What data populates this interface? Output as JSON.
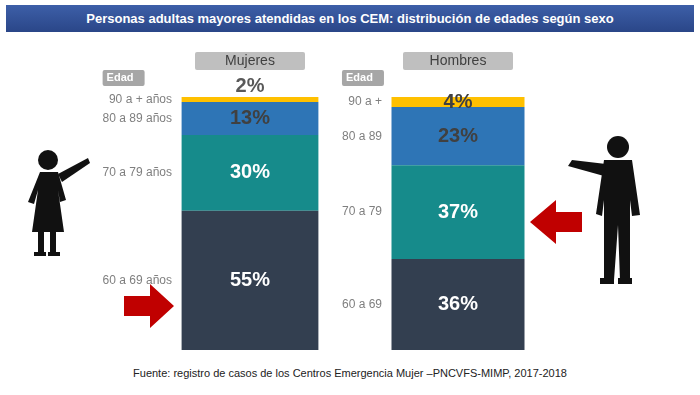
{
  "title": "Personas adultas mayores atendidas en los CEM: distribución de edades según sexo",
  "source": "Fuente: registro de casos de los Centros Emergencia Mujer –PNCVFS-MIMP, 2017-2018",
  "chart_data": [
    {
      "type": "bar",
      "stacked": true,
      "grid": false,
      "tick_labels": false,
      "data_labels": true,
      "ylabel": "Edad",
      "categories": [
        "Mujeres"
      ],
      "ylim": [
        0,
        100
      ],
      "series": [
        {
          "name": "60 a 69 años",
          "color": "#333f50",
          "values": [
            55
          ],
          "value_labels": [
            "55%"
          ]
        },
        {
          "name": "70 a 79 años",
          "color": "#168b8b",
          "values": [
            30
          ],
          "value_labels": [
            "30%"
          ]
        },
        {
          "name": "80 a 89 años",
          "color": "#2e75b6",
          "values": [
            13
          ],
          "value_labels": [
            "13%"
          ]
        },
        {
          "name": "90 a + años",
          "color": "#ffc000",
          "values": [
            2
          ],
          "value_labels": [
            "2%"
          ]
        }
      ]
    },
    {
      "type": "bar",
      "stacked": true,
      "grid": false,
      "tick_labels": false,
      "data_labels": true,
      "ylabel": "Edad",
      "categories": [
        "Hombres"
      ],
      "ylim": [
        0,
        100
      ],
      "series": [
        {
          "name": "60 a 69",
          "color": "#333f50",
          "values": [
            36
          ],
          "value_labels": [
            "36%"
          ]
        },
        {
          "name": "70 a 79",
          "color": "#168b8b",
          "values": [
            37
          ],
          "value_labels": [
            "37%"
          ]
        },
        {
          "name": "80 a 89",
          "color": "#2e75b6",
          "values": [
            23
          ],
          "value_labels": [
            "23%"
          ]
        },
        {
          "name": "90 a +",
          "color": "#ffc000",
          "values": [
            4
          ],
          "value_labels": [
            "4%"
          ]
        }
      ]
    }
  ]
}
